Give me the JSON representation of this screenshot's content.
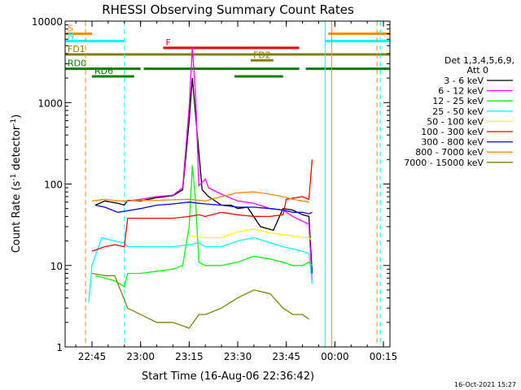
{
  "chart_data": {
    "type": "line",
    "title": "RHESSI Observing Summary Count Rates",
    "xlabel": "Start Time (16-Aug-06 22:36:42)",
    "ylabel": "Count Rate (s⁻¹ detector⁻¹)",
    "ylabel_parts": {
      "main": "Count Rate (s",
      "exp1": "-1",
      "mid": " detector",
      "exp2": "-1",
      "end": ")"
    },
    "y_scale": "log",
    "ylim": [
      1,
      10000
    ],
    "xlim": [
      "22:36:42",
      "00:17:00"
    ],
    "x_ticks": [
      "22:45",
      "23:00",
      "23:15",
      "23:30",
      "23:45",
      "00:00",
      "00:15"
    ],
    "y_ticks": [
      "1",
      "10",
      "100",
      "1000",
      "10000"
    ],
    "legend_title": [
      "Det 1,3,4,5,6,9,",
      "Att 0"
    ],
    "grid": false,
    "series": [
      {
        "name": "3 - 6 keV",
        "color": "#000000",
        "points": [
          [
            "22:46",
            55
          ],
          [
            "22:49",
            62
          ],
          [
            "22:53",
            58
          ],
          [
            "22:55",
            55
          ],
          [
            "22:56",
            63
          ],
          [
            "23:00",
            62
          ],
          [
            "23:05",
            68
          ],
          [
            "23:10",
            72
          ],
          [
            "23:13",
            85
          ],
          [
            "23:15",
            600
          ],
          [
            "23:16",
            2000
          ],
          [
            "23:17",
            700
          ],
          [
            "23:19",
            85
          ],
          [
            "23:21",
            70
          ],
          [
            "23:25",
            55
          ],
          [
            "23:28",
            55
          ],
          [
            "23:30",
            50
          ],
          [
            "23:33",
            52
          ],
          [
            "23:37",
            30
          ],
          [
            "23:41",
            27
          ],
          [
            "23:44",
            50
          ],
          [
            "23:47",
            48
          ],
          [
            "23:50",
            42
          ],
          [
            "23:52",
            40
          ],
          [
            "23:53",
            8
          ]
        ]
      },
      {
        "name": "6 - 12 keV",
        "color": "#ff00ff",
        "points": [
          [
            "22:56",
            62
          ],
          [
            "23:00",
            65
          ],
          [
            "23:05",
            70
          ],
          [
            "23:10",
            73
          ],
          [
            "23:13",
            90
          ],
          [
            "23:15",
            900
          ],
          [
            "23:16",
            4800
          ],
          [
            "23:17",
            1200
          ],
          [
            "23:18",
            95
          ],
          [
            "23:20",
            115
          ],
          [
            "23:21",
            90
          ],
          [
            "23:25",
            75
          ],
          [
            "23:30",
            62
          ],
          [
            "23:35",
            58
          ],
          [
            "23:40",
            50
          ],
          [
            "23:44",
            48
          ],
          [
            "23:47",
            40
          ],
          [
            "23:50",
            35
          ],
          [
            "23:52",
            32
          ],
          [
            "23:53",
            6
          ]
        ]
      },
      {
        "name": "12 - 25 keV",
        "color": "#00ff00",
        "points": [
          [
            "22:46",
            7.5
          ],
          [
            "22:49",
            7
          ],
          [
            "22:52",
            6.5
          ],
          [
            "22:55",
            5.5
          ],
          [
            "22:56",
            8
          ],
          [
            "23:00",
            8
          ],
          [
            "23:05",
            8.5
          ],
          [
            "23:10",
            9
          ],
          [
            "23:13",
            10
          ],
          [
            "23:15",
            30
          ],
          [
            "23:16",
            170
          ],
          [
            "23:17",
            60
          ],
          [
            "23:18",
            11
          ],
          [
            "23:20",
            10
          ],
          [
            "23:25",
            10
          ],
          [
            "23:30",
            11
          ],
          [
            "23:35",
            13
          ],
          [
            "23:40",
            12
          ],
          [
            "23:44",
            11
          ],
          [
            "23:47",
            10
          ],
          [
            "23:50",
            10
          ],
          [
            "23:52",
            11
          ],
          [
            "23:53",
            10
          ]
        ]
      },
      {
        "name": "25 - 50 keV",
        "color": "#00ffff",
        "points": [
          [
            "22:44",
            3.5
          ],
          [
            "22:45",
            10
          ],
          [
            "22:48",
            22
          ],
          [
            "22:52",
            20
          ],
          [
            "22:55",
            19
          ],
          [
            "22:56",
            17
          ],
          [
            "23:00",
            17
          ],
          [
            "23:05",
            17
          ],
          [
            "23:10",
            17
          ],
          [
            "23:15",
            18
          ],
          [
            "23:18",
            19
          ],
          [
            "23:20",
            17
          ],
          [
            "23:25",
            17
          ],
          [
            "23:30",
            20
          ],
          [
            "23:35",
            22
          ],
          [
            "23:40",
            19
          ],
          [
            "23:44",
            17
          ],
          [
            "23:47",
            16
          ],
          [
            "23:50",
            15
          ],
          [
            "23:52",
            14
          ],
          [
            "23:53",
            6
          ]
        ]
      },
      {
        "name": "50 - 100 keV",
        "color": "#ffff00",
        "points": [
          [
            "23:15",
            23
          ],
          [
            "23:20",
            22
          ],
          [
            "23:25",
            22
          ],
          [
            "23:30",
            26
          ],
          [
            "23:35",
            28
          ],
          [
            "23:40",
            25
          ],
          [
            "23:44",
            24
          ],
          [
            "23:47",
            23
          ],
          [
            "23:50",
            22
          ],
          [
            "23:52",
            22
          ],
          [
            "23:53",
            20
          ]
        ]
      },
      {
        "name": "100 - 300 keV",
        "color": "#ff0000",
        "points": [
          [
            "22:45",
            15
          ],
          [
            "22:49",
            17
          ],
          [
            "22:52",
            18
          ],
          [
            "22:55",
            17
          ],
          [
            "22:56",
            38
          ],
          [
            "23:00",
            38
          ],
          [
            "23:05",
            38
          ],
          [
            "23:10",
            38
          ],
          [
            "23:15",
            40
          ],
          [
            "23:18",
            42
          ],
          [
            "23:20",
            40
          ],
          [
            "23:25",
            45
          ],
          [
            "23:30",
            42
          ],
          [
            "23:35",
            40
          ],
          [
            "23:40",
            40
          ],
          [
            "23:44",
            42
          ],
          [
            "23:45",
            65
          ],
          [
            "23:48",
            68
          ],
          [
            "23:50",
            70
          ],
          [
            "23:52",
            65
          ],
          [
            "23:53",
            200
          ]
        ]
      },
      {
        "name": "300 - 800 keV",
        "color": "#0000ff",
        "points": [
          [
            "22:46",
            55
          ],
          [
            "22:49",
            52
          ],
          [
            "22:53",
            45
          ],
          [
            "22:56",
            47
          ],
          [
            "23:00",
            50
          ],
          [
            "23:05",
            55
          ],
          [
            "23:10",
            57
          ],
          [
            "23:15",
            60
          ],
          [
            "23:18",
            58
          ],
          [
            "23:20",
            57
          ],
          [
            "23:25",
            55
          ],
          [
            "23:30",
            52
          ],
          [
            "23:35",
            52
          ],
          [
            "23:40",
            50
          ],
          [
            "23:44",
            48
          ],
          [
            "23:47",
            45
          ],
          [
            "23:50",
            45
          ],
          [
            "23:52",
            43
          ],
          [
            "23:53",
            45
          ]
        ]
      },
      {
        "name": "800 - 7000 keV",
        "color": "#ff8800",
        "points": [
          [
            "22:45",
            62
          ],
          [
            "22:49",
            65
          ],
          [
            "22:53",
            62
          ],
          [
            "22:56",
            62
          ],
          [
            "23:00",
            63
          ],
          [
            "23:05",
            63
          ],
          [
            "23:10",
            64
          ],
          [
            "23:15",
            65
          ],
          [
            "23:20",
            62
          ],
          [
            "23:25",
            70
          ],
          [
            "23:30",
            78
          ],
          [
            "23:35",
            80
          ],
          [
            "23:40",
            75
          ],
          [
            "23:44",
            70
          ],
          [
            "23:47",
            65
          ],
          [
            "23:50",
            62
          ],
          [
            "23:52",
            60
          ]
        ]
      },
      {
        "name": "7000 - 15000 keV",
        "color": "#808000",
        "points": [
          [
            "22:45",
            8
          ],
          [
            "22:49",
            7.5
          ],
          [
            "22:52",
            7.5
          ],
          [
            "22:53",
            6
          ],
          [
            "22:56",
            3
          ],
          [
            "23:00",
            2.5
          ],
          [
            "23:05",
            2
          ],
          [
            "23:10",
            2
          ],
          [
            "23:15",
            1.7
          ],
          [
            "23:18",
            2.5
          ],
          [
            "23:20",
            2.5
          ],
          [
            "23:25",
            3
          ],
          [
            "23:30",
            4
          ],
          [
            "23:35",
            5
          ],
          [
            "23:40",
            4.5
          ],
          [
            "23:44",
            3
          ],
          [
            "23:47",
            2.5
          ],
          [
            "23:50",
            2.5
          ],
          [
            "23:52",
            2.2
          ]
        ]
      }
    ],
    "markers": [
      {
        "label": "S",
        "color": "#ff8800",
        "y": 7000,
        "from": "22:36:42",
        "to": "22:45"
      },
      {
        "label": "",
        "color": "#ff8800",
        "y": 7000,
        "from": "23:58",
        "to": "00:17"
      },
      {
        "label": "N",
        "color": "#00ffff",
        "y": 5700,
        "from": "22:36:42",
        "to": "22:55"
      },
      {
        "label": "",
        "color": "#00ffff",
        "y": 5700,
        "from": "23:57",
        "to": "00:17"
      },
      {
        "label": "F",
        "color": "#ff0000",
        "y": 4700,
        "from": "23:07",
        "to": "23:49"
      },
      {
        "label": "FD1",
        "color": "#808000",
        "y": 3900,
        "from": "22:36:42",
        "to": "00:17"
      },
      {
        "label": "FD2",
        "color": "#808000",
        "y": 3300,
        "from": "23:34",
        "to": "23:41"
      },
      {
        "label": "RD0",
        "color": "#008000",
        "y": 2600,
        "from": "22:36:42",
        "to": "23:00"
      },
      {
        "label": "",
        "color": "#008000",
        "y": 2600,
        "from": "23:01",
        "to": "23:49"
      },
      {
        "label": "",
        "color": "#008000",
        "y": 2600,
        "from": "23:51",
        "to": "00:17"
      },
      {
        "label": "RD6",
        "color": "#008000",
        "y": 2100,
        "from": "22:45",
        "to": "22:58"
      },
      {
        "label": "",
        "color": "#008000",
        "y": 2100,
        "from": "23:29",
        "to": "23:44"
      }
    ],
    "vlines": [
      {
        "x": "22:36:42",
        "color": "#00ffff",
        "style": "solid"
      },
      {
        "x": "22:43",
        "color": "#ff8800",
        "style": "dashed"
      },
      {
        "x": "22:55",
        "color": "#00ffff",
        "style": "dashed"
      },
      {
        "x": "23:57",
        "color": "#00ffff",
        "style": "solid"
      },
      {
        "x": "23:59",
        "color": "#ff8800",
        "style": "solid"
      },
      {
        "x": "00:13",
        "color": "#ff8800",
        "style": "dashed"
      },
      {
        "x": "00:14",
        "color": "#00ffff",
        "style": "dashed"
      }
    ]
  },
  "footer_date": "16-Oct-2021 15:27"
}
